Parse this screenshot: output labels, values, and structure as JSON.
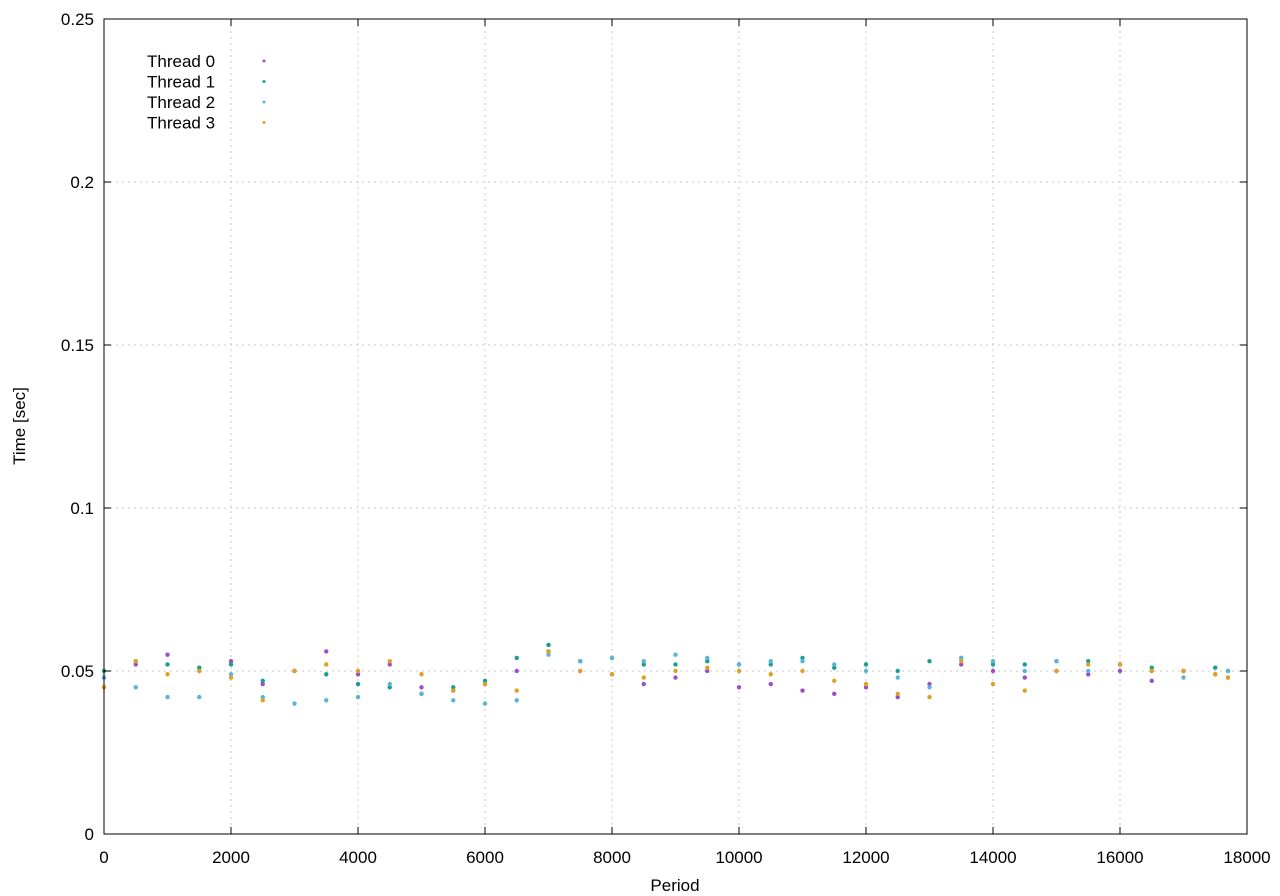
{
  "chart_data": {
    "type": "scatter",
    "title": "",
    "xlabel": "Period",
    "ylabel": "Time [sec]",
    "xlim": [
      0,
      18000
    ],
    "ylim": [
      0,
      0.25
    ],
    "x_ticks": [
      0,
      2000,
      4000,
      6000,
      8000,
      10000,
      12000,
      14000,
      16000,
      18000
    ],
    "y_ticks": [
      0,
      0.05,
      0.1,
      0.15,
      0.2,
      0.25
    ],
    "x_tick_labels": [
      "0",
      "2000",
      "4000",
      "6000",
      "8000",
      "10000",
      "12000",
      "14000",
      "16000",
      "18000"
    ],
    "y_tick_labels": [
      "0",
      "0.05",
      "0.1",
      "0.15",
      "0.2",
      "0.25"
    ],
    "grid": true,
    "legend_position": "top-left",
    "series": [
      {
        "name": "Thread 0",
        "color": "#9b4dca",
        "marker": "dot",
        "x": [
          0,
          500,
          1000,
          1500,
          2000,
          2500,
          3000,
          3500,
          4000,
          4500,
          5000,
          5500,
          6000,
          6500,
          7000,
          7500,
          8000,
          8500,
          9000,
          9500,
          10000,
          10500,
          11000,
          11500,
          12000,
          12500,
          13000,
          13500,
          14000,
          14500,
          15000,
          15500,
          16000,
          16500,
          17000,
          17500,
          17700
        ],
        "y": [
          0.048,
          0.052,
          0.055,
          0.05,
          0.053,
          0.046,
          0.05,
          0.056,
          0.049,
          0.052,
          0.045,
          0.044,
          0.046,
          0.05,
          0.056,
          0.05,
          0.049,
          0.046,
          0.048,
          0.05,
          0.045,
          0.046,
          0.044,
          0.043,
          0.045,
          0.042,
          0.046,
          0.052,
          0.05,
          0.048,
          0.05,
          0.049,
          0.05,
          0.047,
          0.05,
          0.049,
          0.048
        ]
      },
      {
        "name": "Thread 1",
        "color": "#1a9e8f",
        "marker": "dot",
        "x": [
          0,
          500,
          1000,
          1500,
          2000,
          2500,
          3000,
          3500,
          4000,
          4500,
          5000,
          5500,
          6000,
          6500,
          7000,
          7500,
          8000,
          8500,
          9000,
          9500,
          10000,
          10500,
          11000,
          11500,
          12000,
          12500,
          13000,
          13500,
          14000,
          14500,
          15000,
          15500,
          16000,
          16500,
          17000,
          17500,
          17700
        ],
        "y": [
          0.05,
          0.053,
          0.052,
          0.051,
          0.052,
          0.047,
          0.05,
          0.049,
          0.046,
          0.045,
          0.043,
          0.045,
          0.047,
          0.054,
          0.058,
          0.053,
          0.054,
          0.052,
          0.052,
          0.053,
          0.052,
          0.052,
          0.054,
          0.051,
          0.052,
          0.05,
          0.053,
          0.054,
          0.052,
          0.052,
          0.053,
          0.053,
          0.052,
          0.051,
          0.05,
          0.051,
          0.05
        ]
      },
      {
        "name": "Thread 2",
        "color": "#5ab4d6",
        "marker": "dot",
        "x": [
          0,
          500,
          1000,
          1500,
          2000,
          2500,
          3000,
          3500,
          4000,
          4500,
          5000,
          5500,
          6000,
          6500,
          7000,
          7500,
          8000,
          8500,
          9000,
          9500,
          10000,
          10500,
          11000,
          11500,
          12000,
          12500,
          13000,
          13500,
          14000,
          14500,
          15000,
          15500,
          16000,
          16500,
          17000,
          17500,
          17700
        ],
        "y": [
          0.048,
          0.045,
          0.042,
          0.042,
          0.049,
          0.042,
          0.04,
          0.041,
          0.042,
          0.046,
          0.043,
          0.041,
          0.04,
          0.041,
          0.055,
          0.053,
          0.054,
          0.053,
          0.055,
          0.054,
          0.052,
          0.053,
          0.053,
          0.052,
          0.05,
          0.048,
          0.045,
          0.054,
          0.053,
          0.05,
          0.053,
          0.05,
          0.052,
          0.05,
          0.048,
          0.049,
          0.05
        ]
      },
      {
        "name": "Thread 3",
        "color": "#e0a020",
        "marker": "dot",
        "x": [
          0,
          500,
          1000,
          1500,
          2000,
          2500,
          3000,
          3500,
          4000,
          4500,
          5000,
          5500,
          6000,
          6500,
          7000,
          7500,
          8000,
          8500,
          9000,
          9500,
          10000,
          10500,
          11000,
          11500,
          12000,
          12500,
          13000,
          13500,
          14000,
          14500,
          15000,
          15500,
          16000,
          16500,
          17000,
          17500,
          17700
        ],
        "y": [
          0.045,
          0.053,
          0.049,
          0.05,
          0.048,
          0.041,
          0.05,
          0.052,
          0.05,
          0.053,
          0.049,
          0.044,
          0.046,
          0.044,
          0.056,
          0.05,
          0.049,
          0.048,
          0.05,
          0.051,
          0.05,
          0.049,
          0.05,
          0.047,
          0.046,
          0.043,
          0.042,
          0.053,
          0.046,
          0.044,
          0.05,
          0.052,
          0.052,
          0.05,
          0.05,
          0.049,
          0.048
        ]
      }
    ]
  }
}
